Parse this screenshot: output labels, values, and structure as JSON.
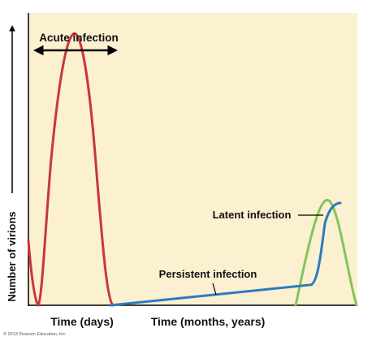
{
  "chart_data": {
    "type": "line",
    "title": "",
    "ylabel": "Number of virions",
    "xlabels": [
      "Time (days)",
      "Time (months, years)"
    ],
    "background_color": "#fbf0d0",
    "grid": false,
    "series": [
      {
        "name": "Acute infection",
        "color": "#c8373a",
        "shape": "sharp peak then return to baseline",
        "x_range": [
          0.0,
          0.25
        ],
        "peak_value": 0.93
      },
      {
        "name": "Persistent infection",
        "color": "#2c7bbf",
        "shape": "low level rising slowly, then rising steeply near the end",
        "start_value": 0.0,
        "slow_end_value": 0.07,
        "final_value": 0.35
      },
      {
        "name": "Latent infection",
        "color": "#86c45a",
        "shape": "zero for a long time, then a late peak",
        "peak_value": 0.36
      }
    ],
    "annotations": [
      {
        "text": "Acute infection",
        "style": "double-headed arrow"
      },
      {
        "text": "Latent infection",
        "style": "leader line"
      },
      {
        "text": "Persistent infection",
        "style": "leader line"
      }
    ]
  },
  "copyright": "© 2013 Pearson Education, Inc."
}
